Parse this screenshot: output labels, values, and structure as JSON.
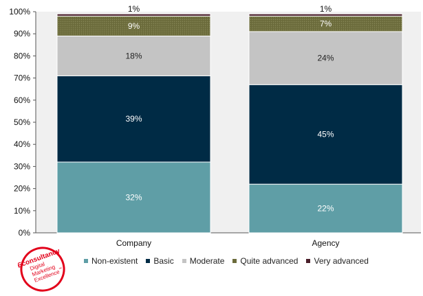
{
  "chart_data": {
    "type": "bar",
    "stacked": true,
    "orientation": "vertical",
    "categories": [
      "Company",
      "Agency"
    ],
    "series": [
      {
        "name": "Non-existent",
        "values": [
          32,
          22
        ],
        "color": "#5f9ea6",
        "label_color": "#ffffff"
      },
      {
        "name": "Basic",
        "values": [
          39,
          45
        ],
        "color": "#002b45",
        "label_color": "#ffffff"
      },
      {
        "name": "Moderate",
        "values": [
          18,
          24
        ],
        "color": "#c4c4c4",
        "label_color": "#222222"
      },
      {
        "name": "Quite advanced",
        "values": [
          9,
          7
        ],
        "color": "#6b6b3b",
        "label_color": "#ffffff"
      },
      {
        "name": "Very advanced",
        "values": [
          1,
          1
        ],
        "color": "#4a1f2a",
        "label_color": "#111111"
      }
    ],
    "data_labels": [
      [
        "32%",
        "22%"
      ],
      [
        "39%",
        "45%"
      ],
      [
        "18%",
        "24%"
      ],
      [
        "9%",
        "7%"
      ],
      [
        "1%",
        "1%"
      ]
    ],
    "y_ticks": [
      "0%",
      "10%",
      "20%",
      "30%",
      "40%",
      "50%",
      "60%",
      "70%",
      "80%",
      "90%",
      "100%"
    ],
    "ylim": [
      0,
      100
    ],
    "legend_position": "bottom",
    "grid": false,
    "plot_background": "#f0f0f0"
  },
  "logo": {
    "lines": [
      "Econsultancy",
      "Digital",
      "Marketing",
      "Excellence"
    ],
    "trademark": "™",
    "color": "#e2001a"
  }
}
